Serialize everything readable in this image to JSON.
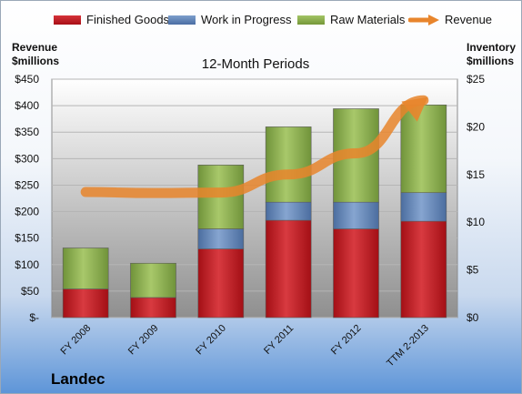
{
  "chart_data": {
    "type": "bar",
    "stacked": true,
    "title": "12-Month Periods",
    "categories": [
      "FY 2008",
      "FY 2009",
      "FY 2010",
      "FY 2011",
      "FY 2012",
      "TTM 2-2013"
    ],
    "series": [
      {
        "name": "Finished Goods",
        "axis": "right",
        "color": "#c0161e",
        "values": [
          3.0,
          2.1,
          7.2,
          10.2,
          9.3,
          10.1
        ]
      },
      {
        "name": "Work in Progress",
        "axis": "right",
        "color": "#5f84ba",
        "values": [
          0,
          0,
          2.1,
          1.9,
          2.8,
          3.0
        ]
      },
      {
        "name": "Raw Materials",
        "axis": "right",
        "color": "#8db04a",
        "values": [
          4.3,
          3.6,
          6.7,
          7.9,
          9.8,
          9.2
        ]
      },
      {
        "name": "Revenue",
        "axis": "left",
        "type": "line",
        "color": "#e8852c",
        "values": [
          237,
          235,
          236,
          270,
          310,
          410
        ]
      }
    ],
    "ylabel_left": [
      "Revenue",
      "$millions"
    ],
    "ylabel_right": [
      "Inventory",
      "$millions"
    ],
    "ylim_left": [
      0,
      450
    ],
    "ylim_right": [
      0,
      25
    ],
    "yticks_left": [
      "$-",
      "$50",
      "$100",
      "$150",
      "$200",
      "$250",
      "$300",
      "$350",
      "$400",
      "$450"
    ],
    "yticks_right": [
      "$0",
      "$5",
      "$10",
      "$15",
      "$20",
      "$25"
    ],
    "grid": true,
    "legend_position": "top"
  },
  "company": "Landec",
  "colors": {
    "finished_goods": "#c0161e",
    "work_in_progress": "#5f84ba",
    "raw_materials": "#8db04a",
    "revenue": "#e8852c"
  }
}
